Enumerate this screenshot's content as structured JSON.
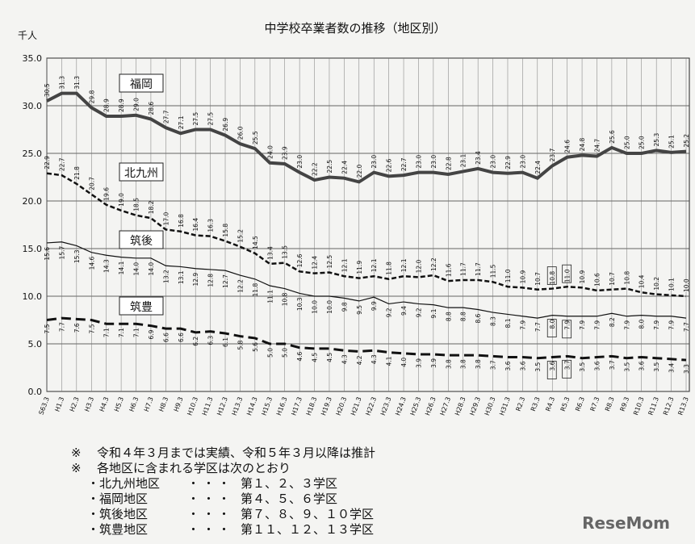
{
  "chart_data": {
    "type": "line",
    "title": "中学校卒業者数の推移（地区別）",
    "y_label": "千人",
    "categories": [
      "S63.3",
      "H1.3",
      "H2.3",
      "H3.3",
      "H4.3",
      "H5.3",
      "H6.3",
      "H7.3",
      "H8.3",
      "H9.3",
      "H10.3",
      "H11.3",
      "H12.3",
      "H13.3",
      "H14.3",
      "H15.3",
      "H16.3",
      "H17.3",
      "H18.3",
      "H19.3",
      "H20.3",
      "H21.3",
      "H22.3",
      "H23.3",
      "H24.3",
      "H25.3",
      "H26.3",
      "H27.3",
      "H28.3",
      "H29.3",
      "H30.3",
      "H31.3",
      "R2.3",
      "R3.3",
      "R4.3",
      "R5.3",
      "R6.3",
      "R7.3",
      "R8.3",
      "R9.3",
      "R10.3",
      "R11.3",
      "R12.3",
      "R13.3"
    ],
    "series": [
      {
        "name": "福岡",
        "color": "#444444",
        "values": [
          30.5,
          31.3,
          31.3,
          29.8,
          28.9,
          28.9,
          29.0,
          28.6,
          27.7,
          27.1,
          27.5,
          27.5,
          26.9,
          26.0,
          25.5,
          24.0,
          23.9,
          23.0,
          22.2,
          22.5,
          22.4,
          22.0,
          23.0,
          22.6,
          22.7,
          23.0,
          23.0,
          22.8,
          23.1,
          23.4,
          23.0,
          22.9,
          23.0,
          22.4,
          23.7,
          24.6,
          24.8,
          24.7,
          25.6,
          25.0,
          25.0,
          25.3,
          25.1,
          25.2
        ],
        "value_labels": [
          "30.5",
          "31.3",
          "31.3",
          "29.8",
          "28.9",
          "28.9",
          "29.0",
          "28.6",
          "27.7",
          "27.1",
          "27.5",
          "27.5",
          "26.9",
          "26.0",
          "25.5",
          "24.0",
          "23.9",
          "23.0",
          "22.2",
          "22.5",
          "22.4",
          "22.0",
          "23.0",
          "22.6",
          "22.7",
          "23.0",
          "23.0",
          "22.8",
          "23.1",
          "23.4",
          "23.0",
          "22.9",
          "23.0",
          "22.4",
          "23.7",
          "24.6",
          "24.8",
          "24.7",
          "25.6",
          "25.0",
          "25.0",
          "25.3",
          "25.1",
          "25.2"
        ]
      },
      {
        "name": "北九州",
        "color": "#111111",
        "values": [
          22.9,
          22.7,
          21.8,
          20.7,
          19.6,
          19.0,
          18.5,
          18.2,
          17.0,
          16.8,
          16.4,
          16.3,
          15.8,
          15.2,
          14.5,
          13.4,
          13.5,
          12.6,
          12.4,
          12.5,
          12.1,
          11.9,
          12.1,
          11.8,
          12.1,
          12.0,
          12.2,
          11.6,
          11.7,
          11.7,
          11.5,
          11.0,
          10.9,
          10.7,
          10.8,
          11.0,
          10.9,
          10.6,
          10.7,
          10.8,
          10.4,
          10.2,
          10.1,
          10.0
        ],
        "value_labels": [
          "22.9",
          "22.7",
          "21.8",
          "20.7",
          "19.6",
          "19.0",
          "18.5",
          "18.2",
          "17.0",
          "16.8",
          "16.4",
          "16.3",
          "15.8",
          "15.2",
          "14.5",
          "13.4",
          "13.5",
          "12.6",
          "12.4",
          "12.5",
          "12.1",
          "11.9",
          "12.1",
          "11.8",
          "12.1",
          "12.0",
          "12.2",
          "11.6",
          "11.7",
          "11.7",
          "11.5",
          "11.0",
          "10.9",
          "10.7",
          "10.8",
          "11.0",
          "10.9",
          "10.6",
          "10.7",
          "10.8",
          "10.4",
          "10.2",
          "10.1",
          "10.0"
        ]
      },
      {
        "name": "筑後",
        "color": "#111111",
        "values": [
          15.6,
          15.7,
          15.3,
          14.6,
          14.3,
          14.1,
          14.0,
          14.0,
          13.2,
          13.1,
          12.9,
          12.8,
          12.7,
          12.2,
          11.8,
          11.1,
          10.8,
          10.3,
          10.0,
          10.0,
          9.8,
          9.5,
          9.9,
          9.2,
          9.4,
          9.2,
          9.1,
          8.8,
          8.8,
          8.6,
          8.3,
          8.1,
          7.9,
          7.7,
          8.0,
          7.9,
          7.9,
          7.9,
          8.2,
          7.9,
          8.0,
          7.9,
          7.9,
          7.7
        ],
        "value_labels": [
          "15.6",
          "15.7",
          "15.3",
          "14.6",
          "14.3",
          "14.1",
          "14.0",
          "14.0",
          "13.2",
          "13.1",
          "12.9",
          "12.8",
          "12.7",
          "12.2",
          "11.8",
          "11.1",
          "10.8",
          "10.3",
          "10.0",
          "10.0",
          "9.8",
          "9.5",
          "9.9",
          "9.2",
          "9.4",
          "9.2",
          "9.1",
          "8.8",
          "8.8",
          "8.6",
          "8.3",
          "8.1",
          "7.9",
          "7.7",
          "8.0",
          "7.9",
          "7.9",
          "7.9",
          "8.2",
          "7.9",
          "8.0",
          "7.9",
          "7.9",
          "7.7"
        ]
      },
      {
        "name": "筑豊",
        "color": "#111111",
        "values": [
          7.5,
          7.7,
          7.6,
          7.5,
          7.1,
          7.1,
          7.1,
          6.9,
          6.6,
          6.6,
          6.2,
          6.3,
          6.1,
          5.8,
          5.6,
          5.0,
          5.0,
          4.6,
          4.5,
          4.5,
          4.3,
          4.2,
          4.3,
          4.1,
          4.0,
          3.9,
          3.9,
          3.8,
          3.8,
          3.8,
          3.7,
          3.6,
          3.6,
          3.5,
          3.6,
          3.7,
          3.5,
          3.6,
          3.7,
          3.5,
          3.6,
          3.5,
          3.4,
          3.3
        ],
        "value_labels": [
          "7.5",
          "7.7",
          "7.6",
          "7.5",
          "7.1",
          "7.1",
          "7.1",
          "6.9",
          "6.6",
          "6.6",
          "6.2",
          "6.3",
          "6.1",
          "5.8",
          "5.6",
          "5.0",
          "5.0",
          "4.6",
          "4.5",
          "4.5",
          "4.3",
          "4.2",
          "4.3",
          "4.1",
          "4.0",
          "3.9",
          "3.9",
          "3.8",
          "3.8",
          "3.8",
          "3.7",
          "3.6",
          "3.6",
          "3.5",
          "3.6",
          "3.7",
          "3.5",
          "3.6",
          "3.7",
          "3.5",
          "3.6",
          "3.5",
          "3.4",
          "3.3"
        ]
      }
    ],
    "ylim": [
      0,
      35
    ],
    "yticks": [
      {
        "value": 0,
        "label": "0.0"
      },
      {
        "value": 5,
        "label": "5.0"
      },
      {
        "value": 10,
        "label": "10.0"
      },
      {
        "value": 15,
        "label": "15.0"
      },
      {
        "value": 20,
        "label": "20.0"
      },
      {
        "value": 25,
        "label": "25.0"
      },
      {
        "value": 30,
        "label": "30.0"
      },
      {
        "value": 35,
        "label": "35.0"
      }
    ],
    "grid": true
  },
  "notes": [
    {
      "mark": "※",
      "text": "令和４年３月までは実績、令和５年３月以降は推計"
    },
    {
      "mark": "※",
      "text": "各地区に含まれる学区は次のとおり"
    }
  ],
  "districts": [
    {
      "name": "・北九州地区",
      "sep": "・・・",
      "schools": "第１、２、３学区"
    },
    {
      "name": "・福岡地区",
      "sep": "・・・",
      "schools": "第４、５、６学区"
    },
    {
      "name": "・筑後地区",
      "sep": "・・・",
      "schools": "第７、８、９、１０学区"
    },
    {
      "name": "・筑豊地区",
      "sep": "・・・",
      "schools": "第１１、１２、１３学区"
    }
  ],
  "watermark": "ReseMom"
}
